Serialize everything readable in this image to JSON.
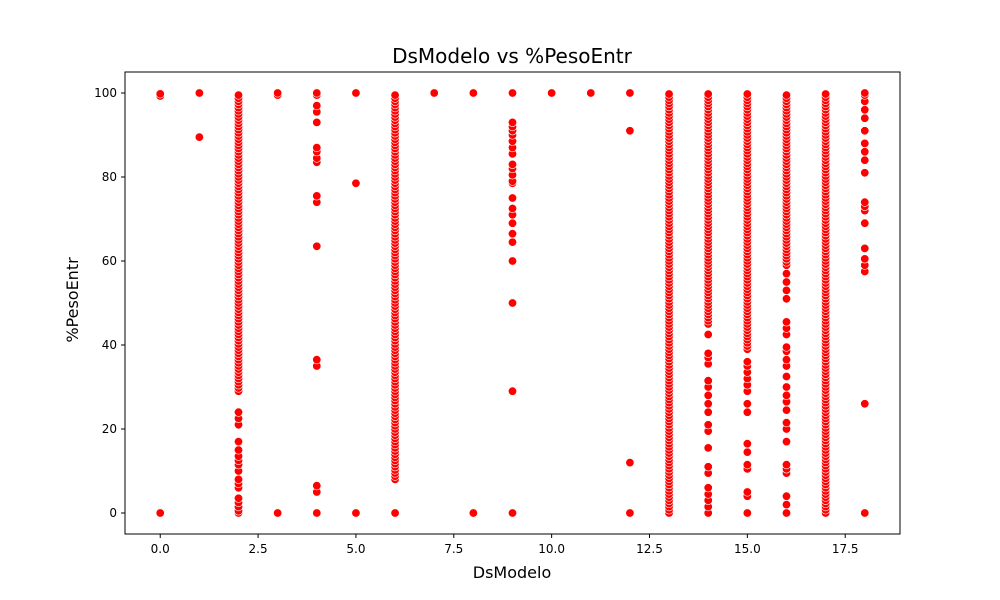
{
  "chart_data": {
    "type": "scatter",
    "title": "DsModelo vs %PesoEntr",
    "xlabel": "DsModelo",
    "ylabel": "%PesoEntr",
    "xlim": [
      -0.9,
      18.9
    ],
    "ylim": [
      -5,
      105
    ],
    "grid": false,
    "x_ticks": [
      0.0,
      2.5,
      5.0,
      7.5,
      10.0,
      12.5,
      15.0,
      17.5
    ],
    "x_tick_labels": [
      "0.0",
      "2.5",
      "5.0",
      "7.5",
      "10.0",
      "12.5",
      "15.0",
      "17.5"
    ],
    "y_ticks": [
      0,
      20,
      40,
      60,
      80,
      100
    ],
    "y_tick_labels": [
      "0",
      "20",
      "40",
      "60",
      "80",
      "100"
    ],
    "marker_color": "#ff0000",
    "marker_edge_color": "#ffffff",
    "columns": [
      {
        "x": 0,
        "values": [
          0,
          99.3,
          99.8
        ],
        "ranges": []
      },
      {
        "x": 1,
        "values": [
          89.5,
          100
        ],
        "ranges": []
      },
      {
        "x": 2,
        "values": [
          0,
          0.5,
          1.5,
          2.5,
          3.5,
          6,
          7,
          8,
          10,
          11.5,
          12.5,
          13.5,
          15,
          17,
          21,
          22.5,
          24
        ],
        "ranges": [
          [
            29,
            100
          ]
        ]
      },
      {
        "x": 3,
        "values": [
          0,
          99.5,
          100
        ],
        "ranges": []
      },
      {
        "x": 4,
        "values": [
          0,
          5,
          6.5,
          35,
          36.5,
          63.5,
          74,
          75.5,
          83.5,
          84.5,
          86,
          87,
          93,
          95.5,
          97,
          99.5,
          100
        ],
        "ranges": []
      },
      {
        "x": 5,
        "values": [
          0,
          78.5,
          100
        ],
        "ranges": []
      },
      {
        "x": 6,
        "values": [
          0
        ],
        "ranges": [
          [
            8,
            100
          ]
        ]
      },
      {
        "x": 7,
        "values": [
          100
        ],
        "ranges": []
      },
      {
        "x": 8,
        "values": [
          0,
          100
        ],
        "ranges": []
      },
      {
        "x": 9,
        "values": [
          0,
          29,
          50,
          60,
          64.5,
          66.5,
          69,
          71,
          72.5,
          75,
          78.5,
          79,
          80.5,
          82,
          83,
          85.5,
          87,
          88.5,
          90,
          91,
          92,
          93,
          100
        ],
        "ranges": []
      },
      {
        "x": 10,
        "values": [
          100
        ],
        "ranges": []
      },
      {
        "x": 11,
        "values": [
          100
        ],
        "ranges": []
      },
      {
        "x": 12,
        "values": [
          0,
          12,
          91,
          100
        ],
        "ranges": []
      },
      {
        "x": 13,
        "values": [],
        "ranges": [
          [
            0,
            100
          ]
        ]
      },
      {
        "x": 14,
        "values": [
          0,
          1.5,
          3,
          4.5,
          6,
          9.5,
          11,
          15.5,
          19.5,
          21,
          24,
          26,
          28,
          30,
          31.5,
          35.5,
          37,
          38,
          42.5
        ],
        "ranges": [
          [
            45,
            100
          ]
        ]
      },
      {
        "x": 15,
        "values": [
          0,
          4,
          5,
          10.5,
          11.5,
          14.5,
          16.5,
          24,
          26,
          29,
          30.5,
          32,
          33.5,
          35,
          36
        ],
        "ranges": [
          [
            39,
            100
          ]
        ]
      },
      {
        "x": 16,
        "values": [
          0,
          2,
          4,
          9.5,
          10.5,
          11.5,
          17,
          20,
          21.5,
          24.5,
          26.5,
          28,
          30,
          32.5,
          35,
          36.5,
          38.5,
          39.5,
          42.5,
          44,
          45.5,
          51,
          53,
          55,
          57
        ],
        "ranges": [
          [
            59,
            100
          ]
        ]
      },
      {
        "x": 17,
        "values": [],
        "ranges": [
          [
            0,
            100
          ]
        ]
      },
      {
        "x": 18,
        "values": [
          0,
          26,
          57.5,
          59,
          60.5,
          63,
          69,
          72,
          73,
          74,
          81,
          84,
          86,
          88,
          91,
          94,
          96,
          98,
          99.5,
          100
        ],
        "ranges": []
      }
    ]
  }
}
